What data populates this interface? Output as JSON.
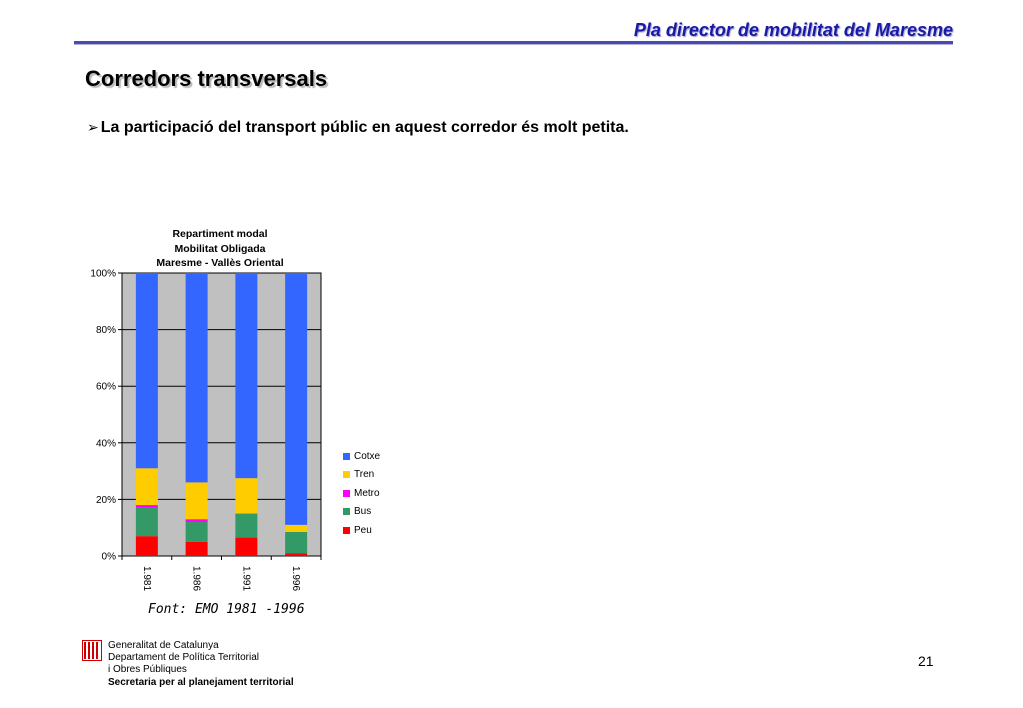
{
  "header": {
    "title": "Pla director de mobilitat del Maresme"
  },
  "slide": {
    "title": "Corredors transversals",
    "bullet_marker": "➢",
    "bullet": "La participació del transport públic en aquest corredor és molt petita."
  },
  "chart_data": {
    "type": "bar",
    "stacked": true,
    "percent": true,
    "title_lines": [
      "Repartiment modal",
      "Mobilitat Obligada",
      "Maresme - Vallès Oriental"
    ],
    "categories": [
      "1.981",
      "1.986",
      "1.991",
      "1.996"
    ],
    "y_ticks": [
      "0%",
      "20%",
      "40%",
      "60%",
      "80%",
      "100%"
    ],
    "ylim": [
      0,
      100
    ],
    "grid": true,
    "plot_background": "#c0c0c0",
    "legend_position": "right",
    "series": [
      {
        "name": "Peu",
        "color": "#ff0000",
        "values": [
          7,
          5,
          6.5,
          1
        ]
      },
      {
        "name": "Bus",
        "color": "#339966",
        "values": [
          10,
          7,
          8.5,
          7.5
        ]
      },
      {
        "name": "Metro",
        "color": "#ff00ff",
        "values": [
          1,
          1,
          0,
          0
        ]
      },
      {
        "name": "Tren",
        "color": "#ffcc00",
        "values": [
          13,
          13,
          12.5,
          2.5
        ]
      },
      {
        "name": "Cotxe",
        "color": "#3366ff",
        "values": [
          69,
          74,
          72.5,
          89
        ]
      }
    ]
  },
  "source": "Font: EMO 1981 -1996",
  "footer": {
    "line1": "Generalitat de Catalunya",
    "line2": "Departament de Política Territorial",
    "line3": "i Obres Públiques",
    "line4": "Secretaria per al planejament territorial"
  },
  "page_number": "21"
}
